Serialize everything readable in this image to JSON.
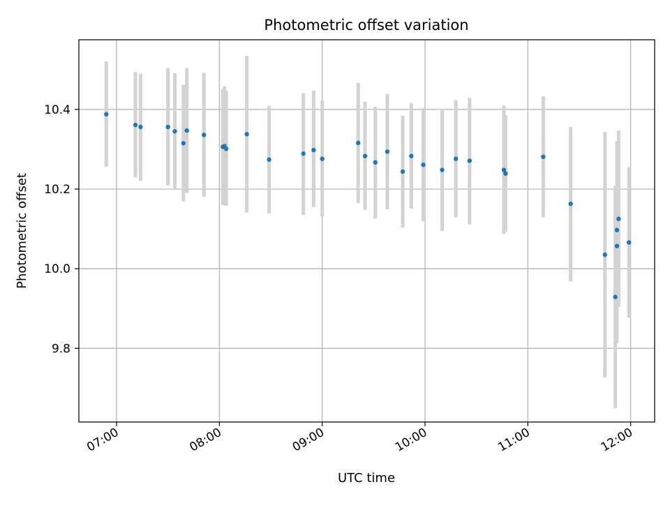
{
  "chart_data": {
    "type": "scatter",
    "title": "Photometric offset variation",
    "xlabel": "UTC time",
    "ylabel": "Photometric offset",
    "x_axis_type": "time",
    "xlim": [
      "06:38",
      "12:14"
    ],
    "ylim": [
      9.615,
      10.575
    ],
    "xticks": [
      "07:00",
      "08:00",
      "09:00",
      "10:00",
      "11:00",
      "12:00"
    ],
    "yticks": [
      9.8,
      10.0,
      10.2,
      10.4
    ],
    "ytick_labels": [
      "9.8",
      "10.0",
      "10.2",
      "10.4"
    ],
    "grid": true,
    "legend": "none",
    "series": [
      {
        "marker_color": "#1f77b4",
        "errorbar_color": "#d3d3d3",
        "points": [
          {
            "x": "06:54",
            "y": 10.388,
            "ylow": 10.256,
            "yhigh": 10.521
          },
          {
            "x": "07:11",
            "y": 10.361,
            "ylow": 10.229,
            "yhigh": 10.494
          },
          {
            "x": "07:14",
            "y": 10.356,
            "ylow": 10.221,
            "yhigh": 10.489
          },
          {
            "x": "07:30",
            "y": 10.356,
            "ylow": 10.209,
            "yhigh": 10.504
          },
          {
            "x": "07:34",
            "y": 10.345,
            "ylow": 10.198,
            "yhigh": 10.491
          },
          {
            "x": "07:39",
            "y": 10.315,
            "ylow": 10.169,
            "yhigh": 10.462
          },
          {
            "x": "07:41",
            "y": 10.347,
            "ylow": 10.19,
            "yhigh": 10.504
          },
          {
            "x": "07:51",
            "y": 10.336,
            "ylow": 10.181,
            "yhigh": 10.492
          },
          {
            "x": "08:02",
            "y": 10.306,
            "ylow": 10.16,
            "yhigh": 10.452
          },
          {
            "x": "08:03",
            "y": 10.308,
            "ylow": 10.159,
            "yhigh": 10.458
          },
          {
            "x": "08:04",
            "y": 10.301,
            "ylow": 10.158,
            "yhigh": 10.446
          },
          {
            "x": "08:16",
            "y": 10.338,
            "ylow": 10.141,
            "yhigh": 10.535
          },
          {
            "x": "08:29",
            "y": 10.274,
            "ylow": 10.139,
            "yhigh": 10.409
          },
          {
            "x": "08:49",
            "y": 10.289,
            "ylow": 10.135,
            "yhigh": 10.441
          },
          {
            "x": "08:55",
            "y": 10.298,
            "ylow": 10.155,
            "yhigh": 10.447
          },
          {
            "x": "09:00",
            "y": 10.276,
            "ylow": 10.131,
            "yhigh": 10.423
          },
          {
            "x": "09:21",
            "y": 10.316,
            "ylow": 10.165,
            "yhigh": 10.467
          },
          {
            "x": "09:25",
            "y": 10.283,
            "ylow": 10.148,
            "yhigh": 10.419
          },
          {
            "x": "09:31",
            "y": 10.267,
            "ylow": 10.126,
            "yhigh": 10.407
          },
          {
            "x": "09:38",
            "y": 10.294,
            "ylow": 10.149,
            "yhigh": 10.439
          },
          {
            "x": "09:47",
            "y": 10.244,
            "ylow": 10.103,
            "yhigh": 10.384
          },
          {
            "x": "09:52",
            "y": 10.283,
            "ylow": 10.151,
            "yhigh": 10.416
          },
          {
            "x": "09:59",
            "y": 10.261,
            "ylow": 10.119,
            "yhigh": 10.403
          },
          {
            "x": "10:10",
            "y": 10.248,
            "ylow": 10.095,
            "yhigh": 10.401
          },
          {
            "x": "10:18",
            "y": 10.276,
            "ylow": 10.129,
            "yhigh": 10.423
          },
          {
            "x": "10:26",
            "y": 10.271,
            "ylow": 10.111,
            "yhigh": 10.429
          },
          {
            "x": "10:46",
            "y": 10.248,
            "ylow": 10.087,
            "yhigh": 10.41
          },
          {
            "x": "10:47",
            "y": 10.239,
            "ylow": 10.093,
            "yhigh": 10.385
          },
          {
            "x": "11:09",
            "y": 10.281,
            "ylow": 10.129,
            "yhigh": 10.433
          },
          {
            "x": "11:25",
            "y": 10.163,
            "ylow": 9.968,
            "yhigh": 10.356
          },
          {
            "x": "11:45",
            "y": 10.035,
            "ylow": 9.727,
            "yhigh": 10.343
          },
          {
            "x": "11:51",
            "y": 9.929,
            "ylow": 9.65,
            "yhigh": 10.208
          },
          {
            "x": "11:52",
            "y": 10.057,
            "ylow": 9.812,
            "yhigh": 10.304
          },
          {
            "x": "11:52",
            "y": 10.097,
            "ylow": 9.86,
            "yhigh": 10.32
          },
          {
            "x": "11:53",
            "y": 10.125,
            "ylow": 9.905,
            "yhigh": 10.347
          },
          {
            "x": "11:59",
            "y": 10.066,
            "ylow": 9.877,
            "yhigh": 10.255
          }
        ]
      }
    ]
  }
}
